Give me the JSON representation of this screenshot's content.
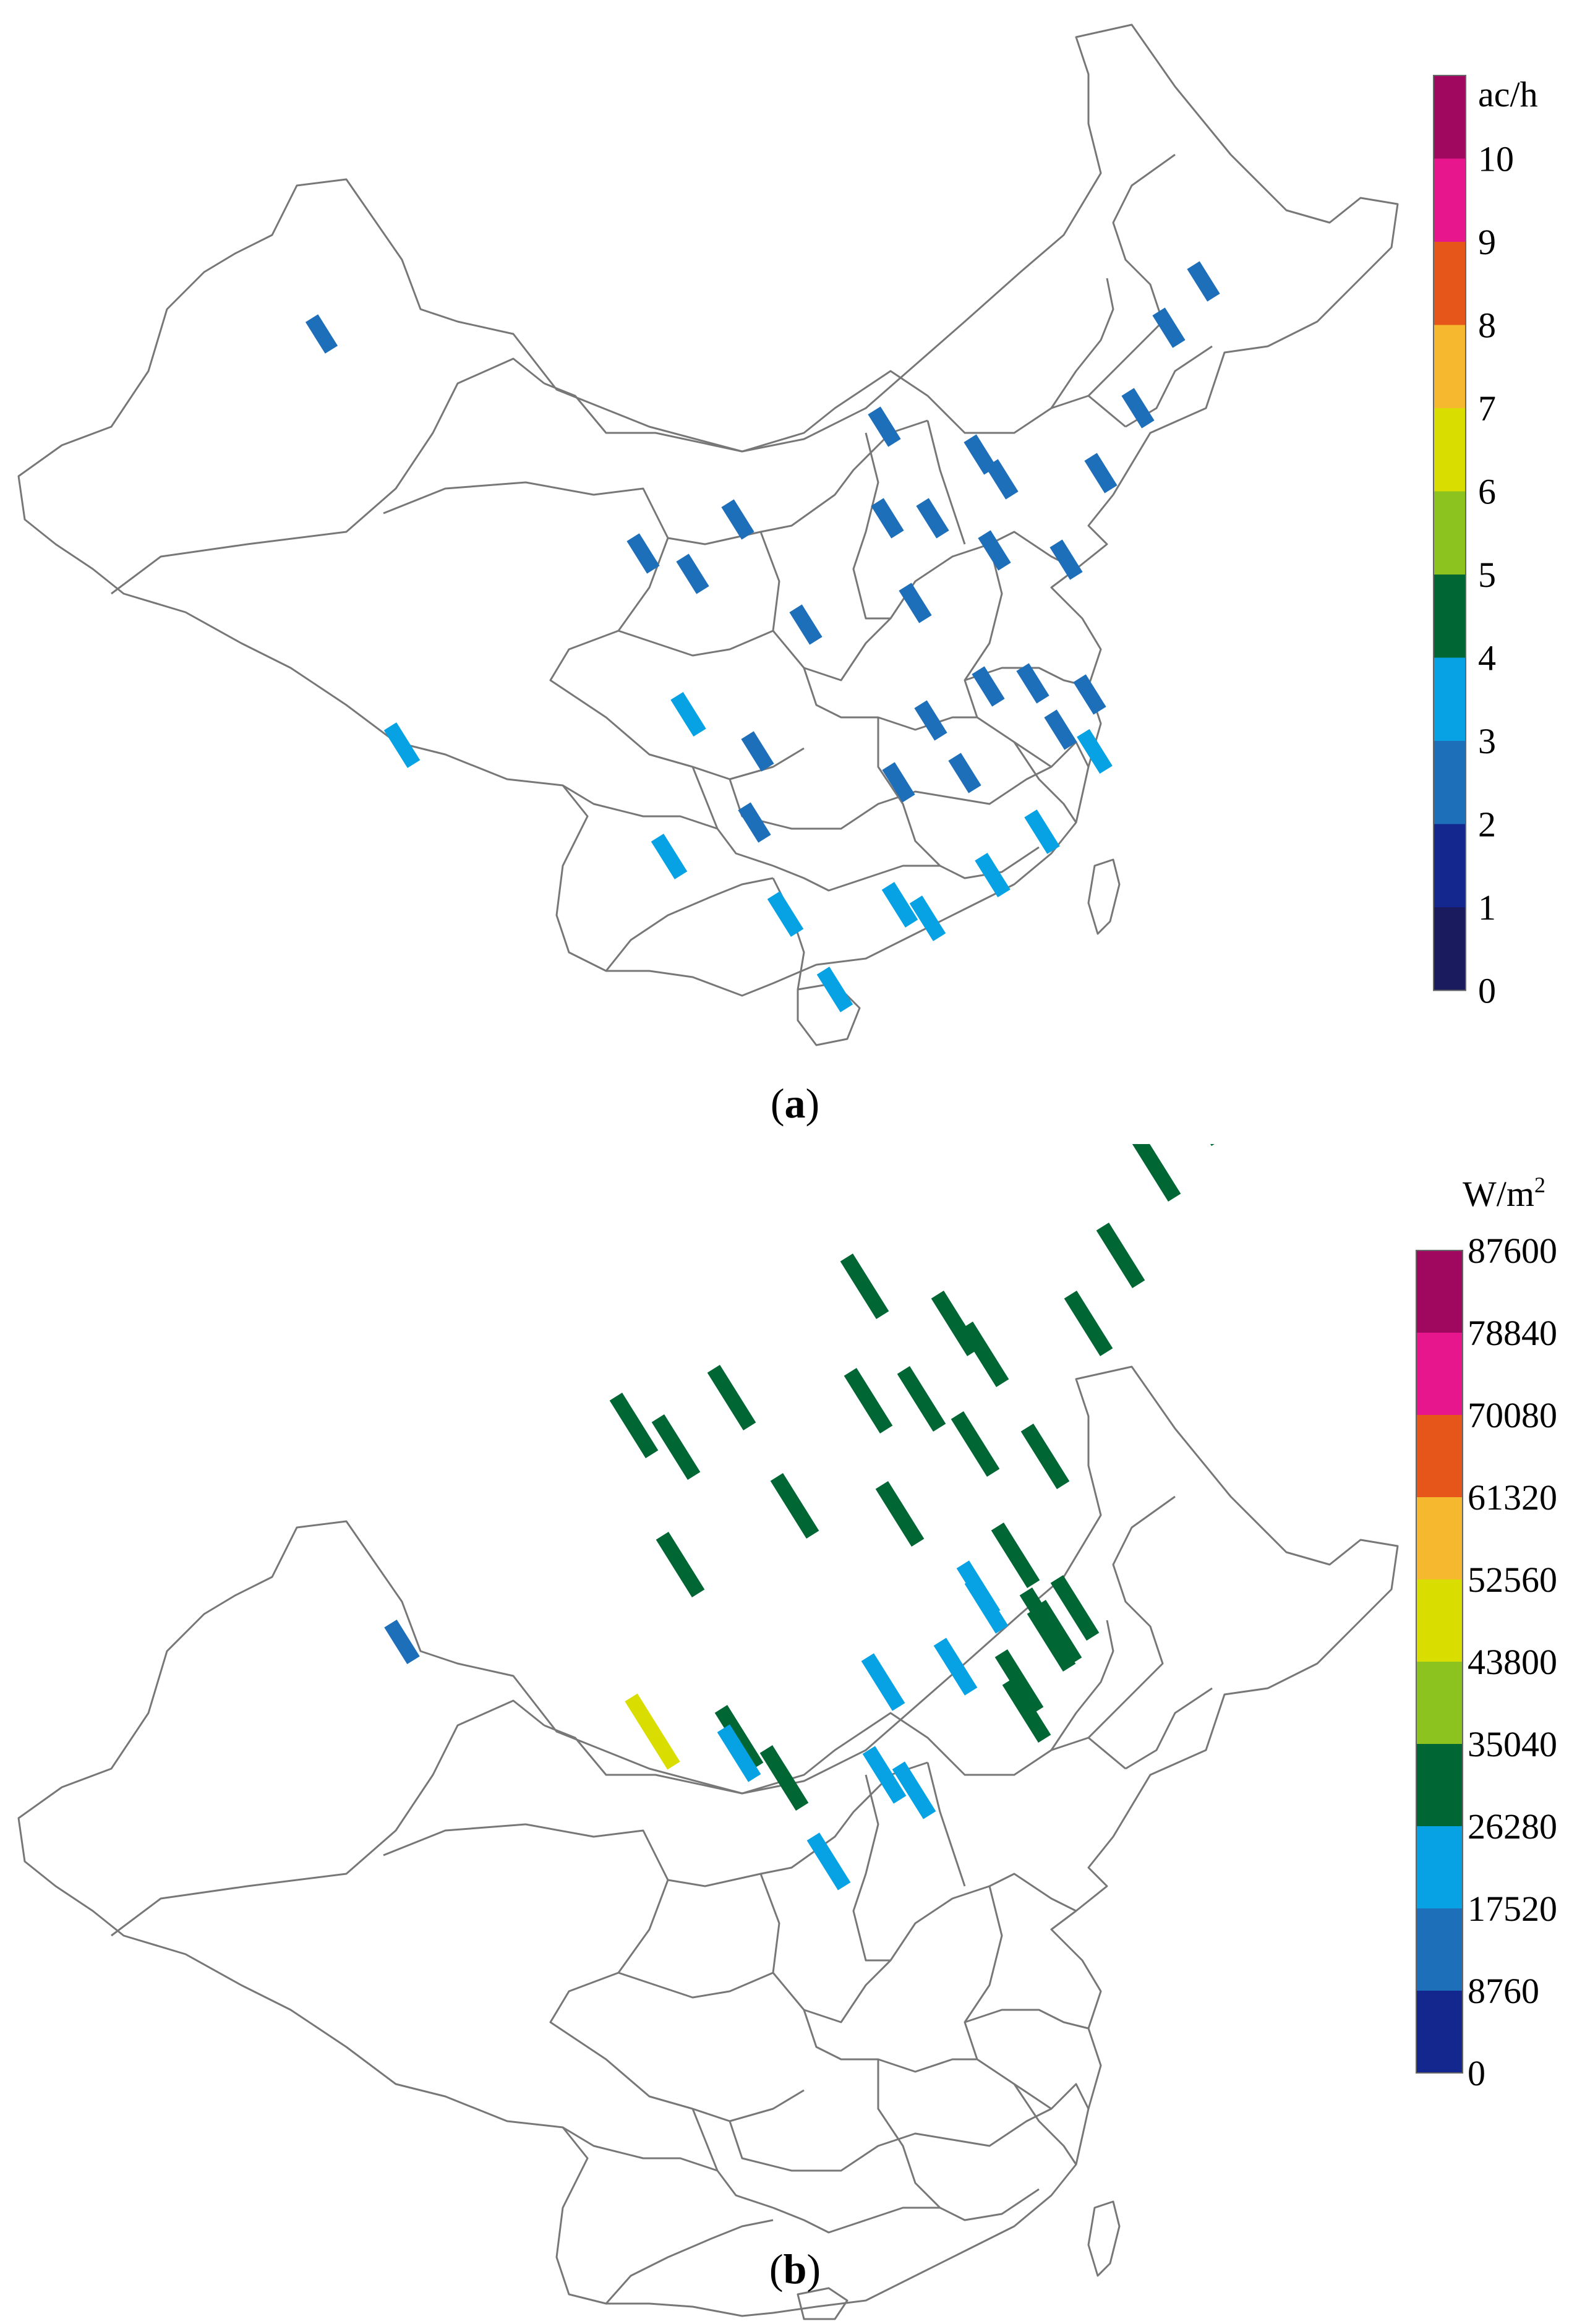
{
  "colors": {
    "c0": "#1a1a5e",
    "c1": "#13278f",
    "c2": "#1e6fba",
    "c3": "#06a2e4",
    "c4": "#006633",
    "c5": "#8cc31e",
    "c6": "#d9de00",
    "c7": "#f5b82e",
    "c8": "#e6561a",
    "c9": "#e8168c",
    "c10": "#a0085f"
  },
  "panels": [
    {
      "caption_letter": "a",
      "legend": {
        "unit": "ac/h",
        "ticks": [
          "10",
          "9",
          "8",
          "7",
          "6",
          "5",
          "4",
          "3",
          "2",
          "1",
          "0"
        ],
        "colors": [
          "#a0085f",
          "#e8168c",
          "#e6561a",
          "#f5b82e",
          "#d9de00",
          "#8cc31e",
          "#006633",
          "#06a2e4",
          "#1e6fba",
          "#13278f",
          "#1a1a5e"
        ]
      },
      "markers": [
        {
          "value": 2
        },
        {
          "value": 2
        },
        {
          "value": 2
        },
        {
          "value": 2
        },
        {
          "value": 2
        },
        {
          "value": 2
        },
        {
          "value": 2
        },
        {
          "value": 2
        },
        {
          "value": 2
        },
        {
          "value": 2
        },
        {
          "value": 2
        },
        {
          "value": 2
        },
        {
          "value": 2
        },
        {
          "value": 2
        },
        {
          "value": 2
        },
        {
          "value": 2
        },
        {
          "value": 2
        },
        {
          "value": 2
        },
        {
          "value": 2
        },
        {
          "value": 2
        },
        {
          "value": 2
        },
        {
          "value": 2
        },
        {
          "value": 2
        },
        {
          "value": 2
        },
        {
          "value": 3
        },
        {
          "value": 2
        },
        {
          "value": 3
        },
        {
          "value": 2
        },
        {
          "value": 3
        },
        {
          "value": 3
        },
        {
          "value": 3
        },
        {
          "value": 3
        },
        {
          "value": 3
        },
        {
          "value": 3
        },
        {
          "value": 3
        },
        {
          "value": 3
        },
        {
          "value": 3
        }
      ]
    },
    {
      "caption_letter": "b",
      "legend": {
        "unit": "W/m",
        "unit_sup": "2",
        "ticks": [
          "87600",
          "78840",
          "70080",
          "61320",
          "52560",
          "43800",
          "35040",
          "26280",
          "17520",
          "8760",
          "0"
        ],
        "colors": [
          "#a0085f",
          "#e8168c",
          "#e6561a",
          "#f5b82e",
          "#d9de00",
          "#8cc31e",
          "#006633",
          "#06a2e4",
          "#1e6fba",
          "#13278f"
        ]
      },
      "markers": [
        {
          "value": 30000
        },
        {
          "value": 30000
        },
        {
          "value": 30000
        },
        {
          "value": 30000
        },
        {
          "value": 30000
        },
        {
          "value": 30000
        },
        {
          "value": 30000
        },
        {
          "value": 30000
        },
        {
          "value": 30000
        },
        {
          "value": 30000
        },
        {
          "value": 30000
        },
        {
          "value": 30000
        },
        {
          "value": 30000
        },
        {
          "value": 30000
        },
        {
          "value": 30000
        },
        {
          "value": 30000
        },
        {
          "value": 30000
        },
        {
          "value": 30000
        },
        {
          "value": 30000
        },
        {
          "value": 30000
        },
        {
          "value": 22000
        },
        {
          "value": 30000
        },
        {
          "value": 30000
        },
        {
          "value": 30000
        },
        {
          "value": 22000
        },
        {
          "value": 30000
        },
        {
          "value": 22000
        },
        {
          "value": 22000
        },
        {
          "value": 30000
        },
        {
          "value": 30000
        },
        {
          "value": 50000
        },
        {
          "value": 30000
        },
        {
          "value": 22000
        },
        {
          "value": 22000
        },
        {
          "value": 22000
        },
        {
          "value": 22000
        },
        {
          "value": 13000
        }
      ]
    }
  ]
}
